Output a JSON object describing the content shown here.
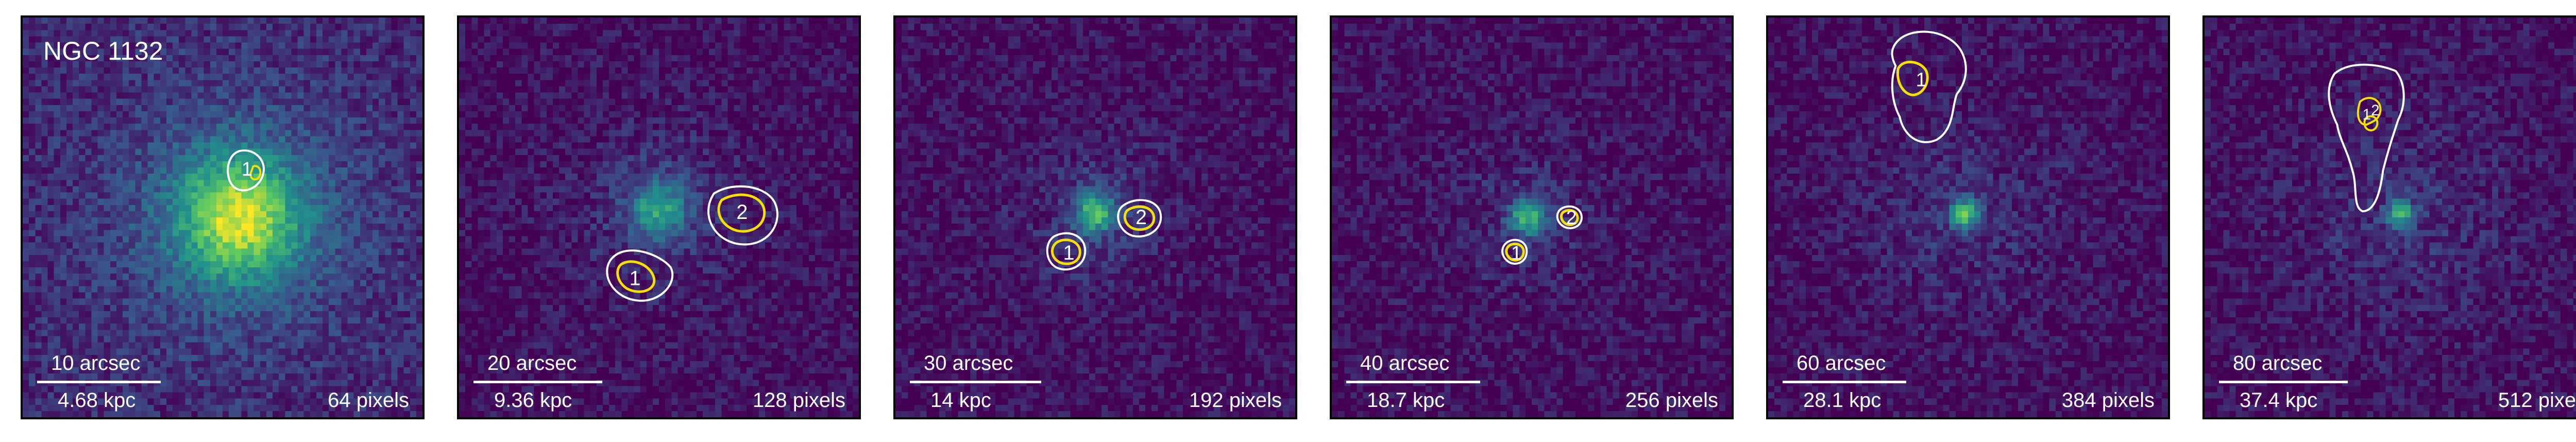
{
  "figure_title": "NGC 1132",
  "panels": [
    {
      "arcsec": "10 arcsec",
      "kpc": "4.68 kpc",
      "pixels": "64 pixels",
      "sources": [
        "1"
      ]
    },
    {
      "arcsec": "20 arcsec",
      "kpc": "9.36 kpc",
      "pixels": "128 pixels",
      "sources": [
        "1",
        "2"
      ]
    },
    {
      "arcsec": "30 arcsec",
      "kpc": "14 kpc",
      "pixels": "192 pixels",
      "sources": [
        "1",
        "2"
      ]
    },
    {
      "arcsec": "40 arcsec",
      "kpc": "18.7 kpc",
      "pixels": "256 pixels",
      "sources": [
        "1",
        "2"
      ]
    },
    {
      "arcsec": "60 arcsec",
      "kpc": "28.1 kpc",
      "pixels": "384 pixels",
      "sources": [
        "1"
      ]
    },
    {
      "arcsec": "80 arcsec",
      "kpc": "37.4 kpc",
      "pixels": "512 pixels",
      "sources": [
        "1",
        "2"
      ]
    }
  ],
  "colors": {
    "background_low": "#440154",
    "mid": "#21918c",
    "high": "#fde725",
    "contour_outer": "#ffffff",
    "contour_inner": "#f5e000"
  }
}
